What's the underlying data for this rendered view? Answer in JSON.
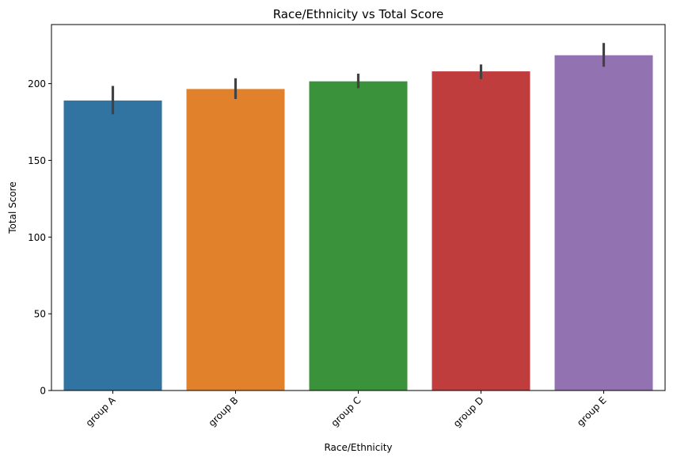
{
  "chart_data": {
    "type": "bar",
    "title": "Race/Ethnicity vs Total Score",
    "xlabel": "Race/Ethnicity",
    "ylabel": "Total Score",
    "categories": [
      "group A",
      "group B",
      "group C",
      "group D",
      "group E"
    ],
    "values": [
      189,
      196.5,
      201.5,
      208,
      218.5
    ],
    "error_low": [
      180,
      190,
      197,
      203,
      211
    ],
    "error_high": [
      198.5,
      203.5,
      206.5,
      212.5,
      226.5
    ],
    "colors": [
      "#3274a1",
      "#e1812c",
      "#3a923a",
      "#c03d3e",
      "#9372b2"
    ],
    "error_color": "#424242",
    "ylim": [
      0,
      238.5
    ],
    "yticks": [
      0,
      50,
      100,
      150,
      200
    ],
    "grid": false,
    "legend": "none"
  }
}
